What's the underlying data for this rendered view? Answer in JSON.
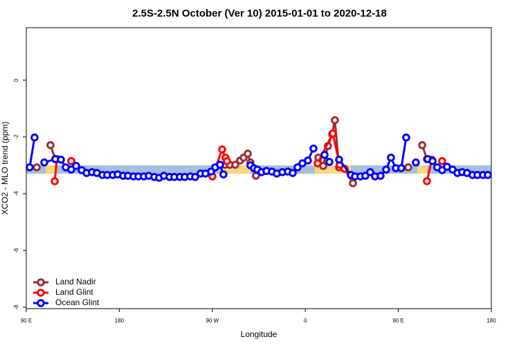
{
  "chart_data": {
    "type": "line",
    "title": "2.5S-2.5N October (Ver 10)   2015-01-01 to 2020-12-18",
    "x_label": "Longitude",
    "y_label": "XCO2 - MLO trend (ppm)",
    "xlim": [
      90,
      540
    ],
    "ylim": [
      -8.05,
      1.85
    ],
    "xticks": [
      {
        "value": 90,
        "label": "90 E"
      },
      {
        "value": 180,
        "label": "180"
      },
      {
        "value": 270,
        "label": "90 W"
      },
      {
        "value": 360,
        "label": "0"
      },
      {
        "value": 450,
        "label": "90 E"
      },
      {
        "value": 540,
        "label": "180"
      }
    ],
    "yticks": [
      -8,
      -6,
      -4,
      -2,
      0
    ],
    "grid": false,
    "legend": "bottom-left",
    "series": [
      {
        "name": "Land Nadir",
        "color": "#9b2d30",
        "x": [
          100.1,
          null,
          113.4,
          118.1,
          null,
          282.2,
          286.9,
          292.2,
          296.9,
          300.3,
          304.3,
          306.9,
          312.3,
          null,
          372.6,
          377.3,
          381.9,
          386.0,
          388.6,
          392.7,
          398.0,
          406.1,
          null,
          459.6,
          null,
          473.1,
          477.7
        ],
        "values": [
          -3.07,
          null,
          -2.29,
          -2.78,
          null,
          -2.98,
          -2.98,
          -2.98,
          -2.83,
          -2.73,
          -2.59,
          -2.9,
          -3.37,
          null,
          -2.73,
          -3.02,
          -2.32,
          -1.9,
          -1.41,
          -3.07,
          -3.12,
          -3.63,
          null,
          -3.07,
          null,
          -2.29,
          -2.78
        ]
      },
      {
        "name": "Land Glint",
        "color": "#ff0000",
        "x": [
          117.5,
          119.5,
          null,
          133.5,
          null,
          270.1,
          279.5,
          282.8,
          284.2,
          null,
          371.9,
          386.6,
          393.3,
          398.0,
          null,
          477.7,
          482.4,
          null,
          492.4
        ],
        "values": [
          -3.56,
          -2.78,
          null,
          -2.85,
          null,
          -3.39,
          -2.44,
          -2.73,
          -2.85,
          null,
          -2.93,
          -1.88,
          -2.98,
          -3.12,
          null,
          -3.56,
          -2.8,
          null,
          -2.85
        ]
      },
      {
        "name": "Ocean Glint",
        "color": "#0000ff",
        "x": [
          93.3,
          98.0,
          null,
          107.4,
          118.1,
          123.5,
          128.2,
          133.5,
          138.2,
          143.6,
          148.3,
          153.6,
          158.3,
          163.7,
          168.3,
          173.7,
          178.4,
          183.7,
          188.4,
          193.8,
          198.5,
          203.8,
          208.5,
          213.9,
          218.6,
          223.2,
          228.6,
          233.3,
          238.6,
          243.3,
          248.7,
          253.4,
          258.7,
          263.4,
          268.8,
          272.8,
          277.5,
          280.8,
          null,
          306.9,
          310.3,
          313.6,
          317.7,
          322.4,
          327.7,
          332.4,
          337.8,
          343.1,
          347.8,
          352.5,
          357.2,
          362.5,
          367.9,
          null,
          378.6,
          383.3,
          null,
          392.7,
          404.1,
          408.1,
          413.4,
          418.1,
          422.8,
          427.5,
          432.8,
          438.2,
          442.9,
          447.6,
          452.9,
          457.6,
          null,
          467.0,
          null,
          478.4,
          483.1,
          487.7,
          492.4,
          497.1,
          502.5,
          507.2,
          511.8,
          516.5,
          521.9,
          526.6,
          531.9,
          536.6
        ],
        "values": [
          -3.07,
          -2.02,
          null,
          -2.9,
          -2.78,
          -2.8,
          -3.07,
          -3.15,
          -3.02,
          -3.17,
          -3.27,
          -3.24,
          -3.27,
          -3.34,
          -3.34,
          -3.34,
          -3.32,
          -3.37,
          -3.37,
          -3.39,
          -3.39,
          -3.39,
          -3.37,
          -3.41,
          -3.44,
          -3.37,
          -3.41,
          -3.41,
          -3.41,
          -3.41,
          -3.39,
          -3.41,
          -3.29,
          -3.29,
          -3.22,
          -3.07,
          -2.98,
          -3.32,
          null,
          -3.0,
          -3.1,
          -3.15,
          -3.24,
          -3.2,
          -3.22,
          -3.29,
          -3.24,
          -3.22,
          -3.27,
          -3.07,
          -2.93,
          -2.83,
          -2.41,
          null,
          -2.63,
          -2.88,
          null,
          -2.8,
          -3.34,
          -3.39,
          -3.39,
          -3.37,
          -3.24,
          -3.39,
          -3.37,
          -3.15,
          -2.73,
          -3.1,
          -3.1,
          -2.02,
          null,
          -2.9,
          null,
          -2.78,
          -2.85,
          -3.07,
          -3.17,
          -3.05,
          -3.15,
          -3.27,
          -3.24,
          -3.27,
          -3.34,
          -3.34,
          -3.34,
          -3.34
        ]
      }
    ]
  }
}
